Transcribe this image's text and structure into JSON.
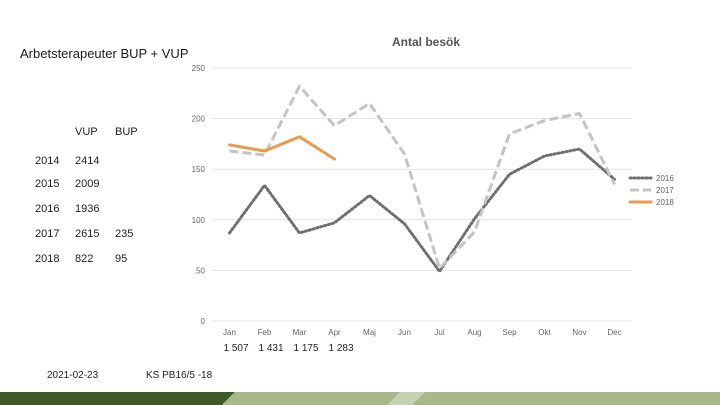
{
  "slide": {
    "title": "Arbetsterapeuter BUP + VUP",
    "footer_date": "2021-02-23",
    "footer_ref": "KS PB16/5 -18"
  },
  "visit_table": {
    "headers": {
      "vup": "VUP",
      "bup": "BUP"
    },
    "rows": [
      {
        "year": "2014",
        "vup": "2414",
        "bup": ""
      },
      {
        "year": "2015",
        "vup": "2009",
        "bup": ""
      },
      {
        "year": "2016",
        "vup": "1936",
        "bup": ""
      },
      {
        "year": "2017",
        "vup": "2615",
        "bup": "235"
      },
      {
        "year": "2018",
        "vup": "822",
        "bup": "95"
      }
    ]
  },
  "under_axis_values": [
    "1 507",
    "1 431",
    "1 175",
    "1 283"
  ],
  "colors": {
    "s2016": "#6f6f6f",
    "s2017": "#c4c4c4",
    "s2018": "#e89b4d",
    "grid": "#e3e3e3",
    "band_dark": "#3f5a26",
    "band_light": "#a7b98a"
  },
  "chart_data": {
    "type": "line",
    "title": "Antal besök",
    "xlabel": "",
    "ylabel": "",
    "ylim": [
      0,
      250
    ],
    "yticks": [
      "0",
      "50",
      "100",
      "150",
      "200",
      "250"
    ],
    "categories": [
      "Jan",
      "Feb",
      "Mar",
      "Apr",
      "Maj",
      "Jun",
      "Jul",
      "Aug",
      "Sep",
      "Okt",
      "Nov",
      "Dec"
    ],
    "grid": true,
    "legend": "right",
    "series": [
      {
        "name": "2016",
        "style": "dotted",
        "values": [
          87,
          134,
          87,
          97,
          124,
          96,
          49,
          101,
          145,
          163,
          170,
          140
        ]
      },
      {
        "name": "2017",
        "style": "dashed",
        "values": [
          168,
          164,
          232,
          193,
          215,
          165,
          52,
          88,
          185,
          198,
          205,
          135
        ]
      },
      {
        "name": "2018",
        "style": "solid",
        "values": [
          174,
          168,
          182,
          160,
          null,
          null,
          null,
          null,
          null,
          null,
          null,
          null
        ]
      }
    ]
  }
}
